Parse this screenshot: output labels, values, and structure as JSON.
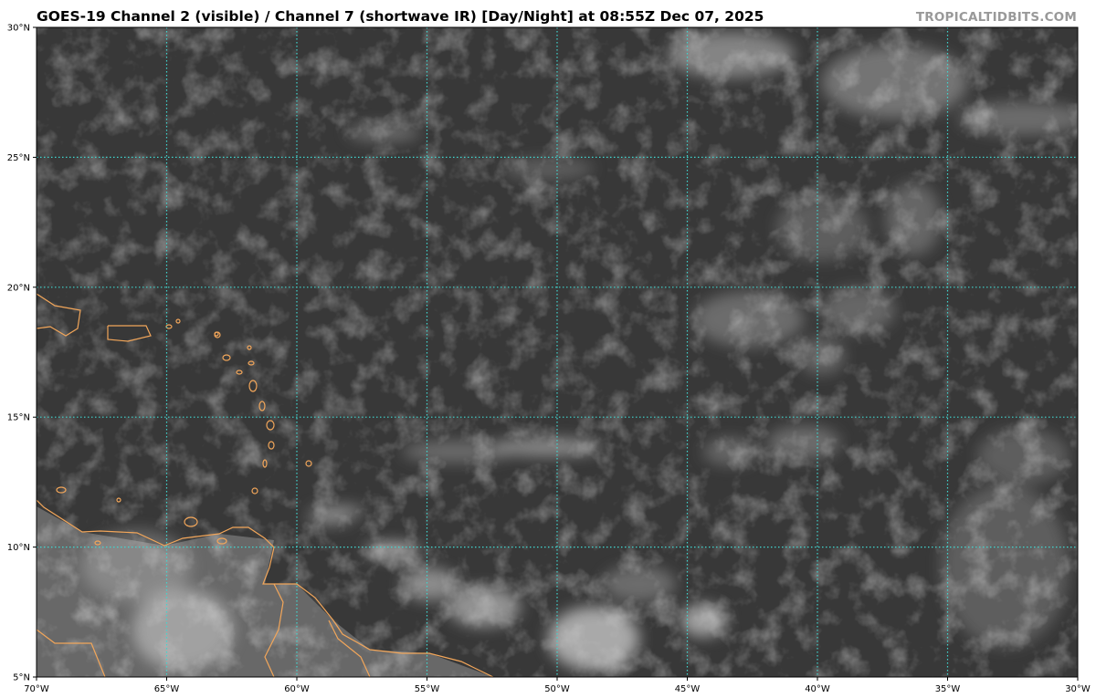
{
  "header": {
    "title": "GOES-19 Channel 2 (visible) / Channel 7 (shortwave IR) [Day/Night] at 08:55Z Dec 07, 2025",
    "watermark": "TROPICALTIDBITS.COM"
  },
  "map": {
    "extent": {
      "lon": [
        -70,
        -30
      ],
      "lat": [
        5,
        30
      ]
    },
    "grid_step_deg": 5,
    "lat_labels": [
      "5°N",
      "10°N",
      "15°N",
      "20°N",
      "25°N",
      "30°N"
    ],
    "lon_labels": [
      "70°W",
      "65°W",
      "60°W",
      "55°W",
      "50°W",
      "45°W",
      "40°W",
      "35°W",
      "30°W"
    ],
    "colors": {
      "gridline": "#3fd6d0",
      "coastline": "#f2a65a",
      "ocean_background": "#3a3a3a",
      "land_background": "#6a6a6a",
      "cloud": "#d8d8d8"
    }
  }
}
